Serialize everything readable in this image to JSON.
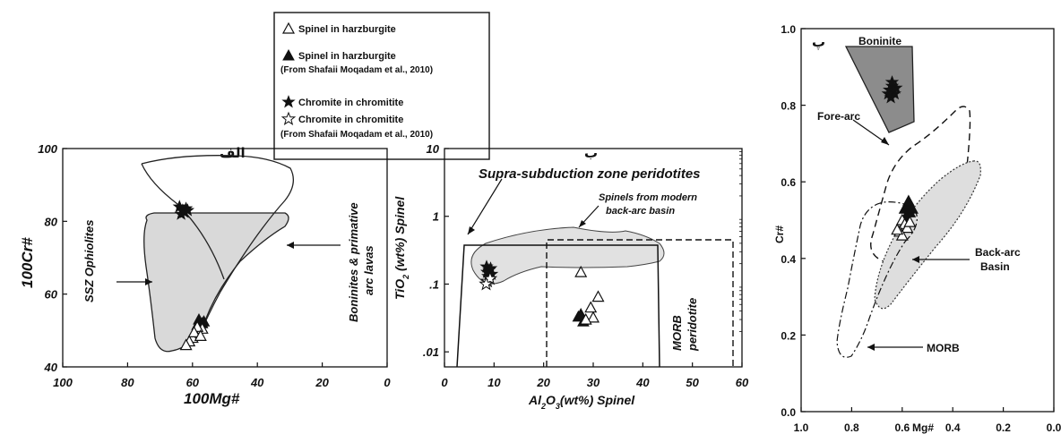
{
  "legend": {
    "items": [
      {
        "marker": "open-triangle",
        "label": "Spinel in harzburgite",
        "note": ""
      },
      {
        "marker": "filled-triangle",
        "label": "Spinel in harzburgite",
        "note": "(From Shafaii Moqadam et al., 2010)"
      },
      {
        "marker": "filled-star",
        "label": "Chromite in chromitite",
        "note": ""
      },
      {
        "marker": "open-star",
        "label": "Chromite in chromitite",
        "note": "(From Shafaii Moqadam et al., 2010)"
      }
    ]
  },
  "panels": [
    {
      "panel_label": "الف",
      "xlabel": "100Mg#",
      "ylabel": "100Cr#",
      "xticks": [
        "100",
        "80",
        "60",
        "40",
        "20",
        "0"
      ],
      "yticks": [
        "100",
        "80",
        "60",
        "40"
      ],
      "annotations": {
        "ssz": "SSZ Ophiolites",
        "boninite_1": "Boninites & primative",
        "boninite_2": "arc lavas"
      }
    },
    {
      "panel_label": "ب",
      "xlabel_pre": "Al",
      "xlabel_sub1": "2",
      "xlabel_mid": "O",
      "xlabel_sub2": "3",
      "xlabel_post": "(wt%) Spinel",
      "ylabel_pre": "TiO",
      "ylabel_sub": "2",
      "ylabel_post": " (wt%) Spinel",
      "xticks": [
        "0",
        "10",
        "20",
        "30",
        "40",
        "50",
        "60"
      ],
      "yticks": [
        "10",
        "1",
        ".1",
        ".01"
      ],
      "annotations": {
        "ssz": "Supra-subduction zone peridotites",
        "backarc_1": "Spinels from modern",
        "backarc_2": "back-arc basin",
        "morb_1": "MORB",
        "morb_2": "peridotite"
      }
    },
    {
      "panel_label": "پ",
      "xlabel": "Mg#",
      "ylabel": "Cr#",
      "xticks": [
        "1.0",
        "0.8",
        "0.6",
        "0.4",
        "0.2",
        "0.0"
      ],
      "yticks": [
        "1.0",
        "0.8",
        "0.6",
        "0.4",
        "0.2",
        "0.0"
      ],
      "annotations": {
        "boninite": "Boninite",
        "forearc": "Fore-arc",
        "backarc_1": "Back-arc",
        "backarc_2": "Basin",
        "morb": "MORB"
      }
    }
  ],
  "chart_data": [
    {
      "type": "scatter",
      "xlabel": "100Mg#",
      "ylabel": "100Cr#",
      "xlim": [
        100,
        0
      ],
      "ylim": [
        40,
        100
      ],
      "series": [
        {
          "marker": "filled-star",
          "x": [
            64,
            63,
            62,
            63.5,
            62.5,
            61.5
          ],
          "y": [
            84,
            83,
            83.5,
            82,
            82.5,
            83
          ]
        },
        {
          "marker": "filled-triangle",
          "x": [
            58,
            57,
            58.5,
            56.5,
            57.5
          ],
          "y": [
            53,
            52,
            51.5,
            52.5,
            51
          ]
        },
        {
          "marker": "open-triangle",
          "x": [
            59,
            58,
            60,
            57,
            61,
            62,
            58.5,
            59.5,
            57.5
          ],
          "y": [
            50,
            49,
            48,
            50.5,
            47,
            46,
            51,
            49.5,
            48.5
          ]
        }
      ]
    },
    {
      "type": "scatter",
      "xlabel": "Al2O3(wt%) Spinel",
      "ylabel": "TiO2 (wt%) Spinel",
      "xlim": [
        0,
        60
      ],
      "ylim": [
        0.006,
        10
      ],
      "yscale": "log",
      "series": [
        {
          "marker": "filled-star",
          "x": [
            8.5,
            9,
            9.5,
            8.8,
            9.3,
            8.6
          ],
          "y": [
            0.18,
            0.16,
            0.14,
            0.13,
            0.17,
            0.15
          ]
        },
        {
          "marker": "open-star",
          "x": [
            8.7,
            9.2,
            8.4
          ],
          "y": [
            0.11,
            0.12,
            0.1
          ]
        },
        {
          "marker": "filled-triangle",
          "x": [
            27,
            28,
            27.5
          ],
          "y": [
            0.033,
            0.028,
            0.036
          ]
        },
        {
          "marker": "open-triangle",
          "x": [
            27.5,
            29.5,
            31,
            30,
            28.5
          ],
          "y": [
            0.15,
            0.045,
            0.065,
            0.032,
            0.03
          ]
        }
      ]
    },
    {
      "type": "scatter",
      "xlabel": "Mg#",
      "ylabel": "Cr#",
      "xlim": [
        1.0,
        0.0
      ],
      "ylim": [
        0.0,
        1.0
      ],
      "series": [
        {
          "marker": "filled-star",
          "x": [
            0.65,
            0.64,
            0.63,
            0.645,
            0.635,
            0.655,
            0.625,
            0.64
          ],
          "y": [
            0.84,
            0.85,
            0.83,
            0.82,
            0.84,
            0.83,
            0.845,
            0.86
          ]
        },
        {
          "marker": "filled-triangle",
          "x": [
            0.59,
            0.58,
            0.57,
            0.585,
            0.575,
            0.56
          ],
          "y": [
            0.53,
            0.54,
            0.52,
            0.51,
            0.55,
            0.53
          ]
        },
        {
          "marker": "open-triangle",
          "x": [
            0.6,
            0.59,
            0.58,
            0.61,
            0.6,
            0.57,
            0.62
          ],
          "y": [
            0.5,
            0.49,
            0.48,
            0.47,
            0.46,
            0.495,
            0.475
          ]
        }
      ]
    }
  ]
}
